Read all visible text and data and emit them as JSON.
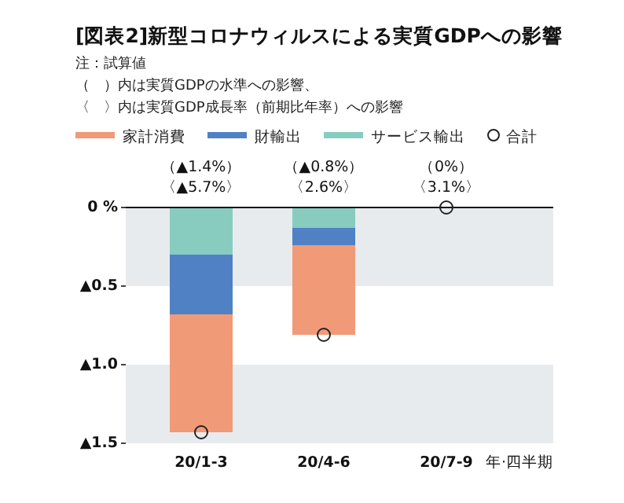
{
  "chart_data": {
    "type": "bar",
    "stacked": true,
    "title": "[図表2]新型コロナウィルスによる実質GDPへの影響",
    "subtitle": "注：試算値",
    "categories": [
      "20/1-3",
      "20/4-6",
      "20/7-9"
    ],
    "xlabel": "年·四半期",
    "series": [
      {
        "name": "サービス輸出",
        "color": "#88ccc0",
        "values": [
          -0.3,
          -0.13,
          0
        ]
      },
      {
        "name": "財輸出",
        "color": "#4f81c4",
        "values": [
          -0.38,
          -0.11,
          0
        ]
      },
      {
        "name": "家計消費",
        "color": "#f19a77",
        "values": [
          -0.75,
          -0.57,
          0
        ]
      },
      {
        "name": "合計",
        "type": "scatter",
        "marker": "circle",
        "color": "#222222",
        "x": [
          "20/1-3",
          "20/4-6",
          "20/7-9"
        ],
        "values": [
          -1.43,
          -0.81,
          0
        ]
      }
    ],
    "ylim": [
      -1.5,
      0
    ],
    "yticks": [
      {
        "value": 0,
        "label": "0 %"
      },
      {
        "value": -0.5,
        "label": "▲0.5"
      },
      {
        "value": -1,
        "label": "▲1.0"
      },
      {
        "value": -1.5,
        "label": "▲1.5"
      }
    ],
    "bands": [
      {
        "axis": "y",
        "from": 0,
        "to": -0.5,
        "color": "#e8ebee"
      },
      {
        "axis": "y",
        "from": -1,
        "to": -1.5,
        "color": "#e8ebee"
      }
    ],
    "legend": "top",
    "annotations": [
      "（　）内は実質GDPの水準への影響、",
      "〈　〉内は実質GDP成長率（前期比年率）への影響",
      "（▲1.4%）",
      "〈▲5.7%〉",
      "（▲0.8%）",
      "〈2.6%〉",
      "（0%）",
      "〈3.1%〉"
    ]
  }
}
